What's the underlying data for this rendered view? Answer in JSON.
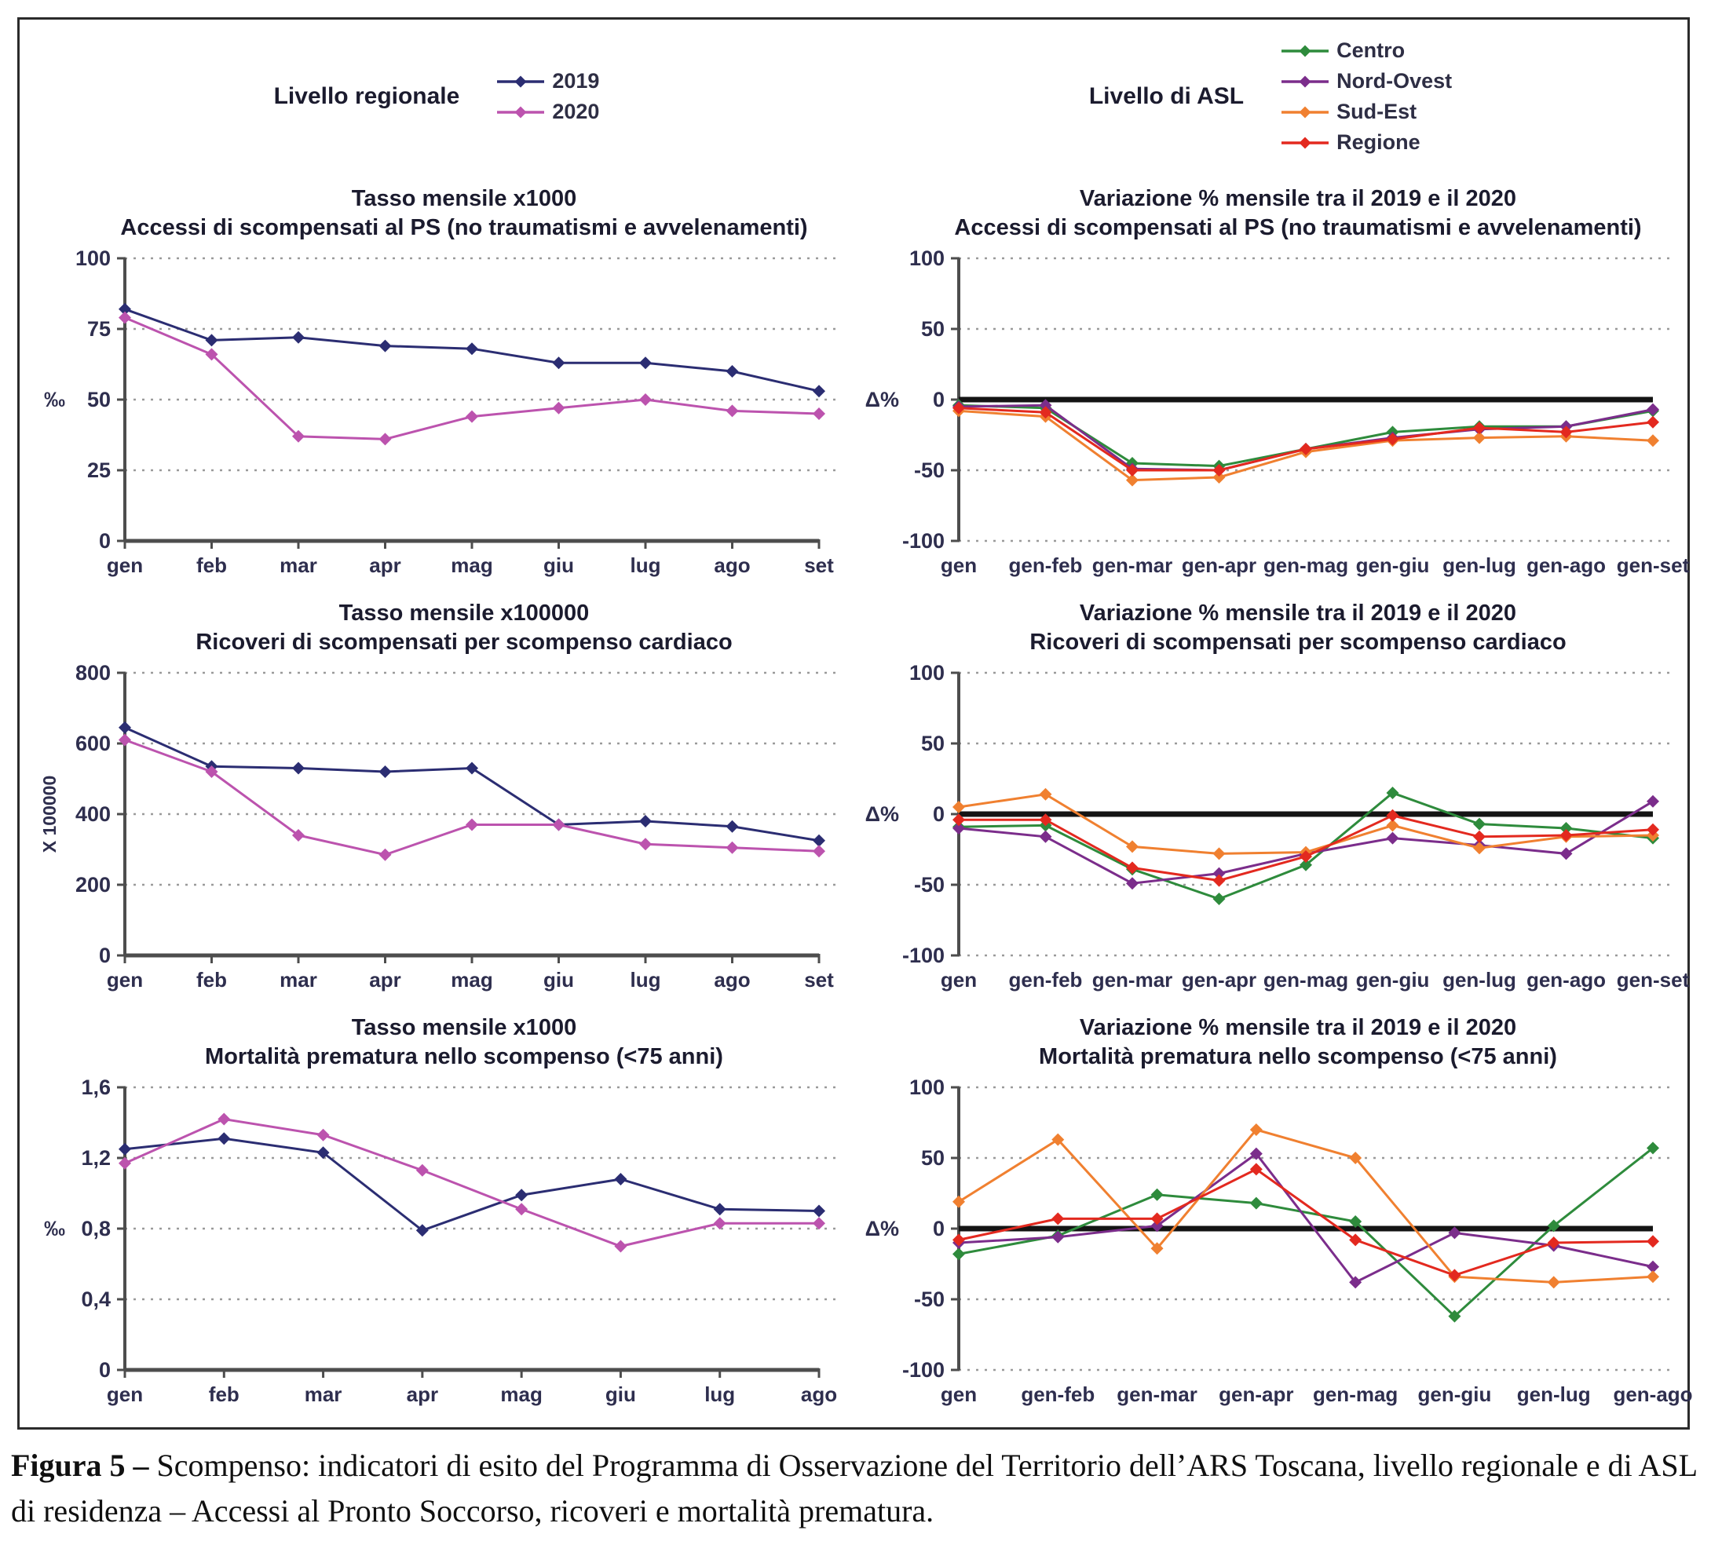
{
  "palette": {
    "c2019": "#2b2d72",
    "c2020": "#bc53ae",
    "centro": "#2e8b3c",
    "nordovest": "#7b2d8b",
    "sudest": "#f08030",
    "regione": "#e3291f",
    "grid": "#9a9a9a",
    "axis": "#4d4d4d",
    "zero": "#141414",
    "tick_text": "#2e2e4e"
  },
  "legend_left": {
    "title": "Livello regionale",
    "items": [
      {
        "label": "2019",
        "color": "c2019"
      },
      {
        "label": "2020",
        "color": "c2020"
      }
    ]
  },
  "legend_right": {
    "title": "Livello di ASL",
    "items": [
      {
        "label": "Centro",
        "color": "centro"
      },
      {
        "label": "Nord-Ovest",
        "color": "nordovest"
      },
      {
        "label": "Sud-Est",
        "color": "sudest"
      },
      {
        "label": "Regione",
        "color": "regione"
      }
    ]
  },
  "chart_data": [
    {
      "type": "line",
      "title1": "Tasso mensile x1000",
      "title2": "Accessi di scompensati al PS (no traumatismi e avvelenamenti)",
      "ylabel": "‰",
      "ylabel_rotate": false,
      "ymin": 0,
      "ymax": 100,
      "yticks": [
        {
          "v": 0,
          "l": "0"
        },
        {
          "v": 25,
          "l": "25"
        },
        {
          "v": 50,
          "l": "50"
        },
        {
          "v": 75,
          "l": "75"
        },
        {
          "v": 100,
          "l": "100"
        }
      ],
      "zero_axis": true,
      "zero_thick": false,
      "grid": true,
      "legend_position": "top-left-of-figure",
      "categories": [
        "gen",
        "feb",
        "mar",
        "apr",
        "mag",
        "giu",
        "lug",
        "ago",
        "set"
      ],
      "series": [
        {
          "name": "2019",
          "color": "c2019",
          "values": [
            82,
            71,
            72,
            69,
            68,
            63,
            63,
            60,
            53
          ]
        },
        {
          "name": "2020",
          "color": "c2020",
          "values": [
            79,
            66,
            37,
            36,
            44,
            47,
            50,
            46,
            45
          ]
        }
      ]
    },
    {
      "type": "line",
      "title1": "Variazione % mensile tra il 2019 e il 2020",
      "title2": "Accessi di scompensati al PS (no traumatismi e avvelenamenti)",
      "ylabel": "Δ%",
      "ylabel_rotate": false,
      "ymin": -100,
      "ymax": 100,
      "yticks": [
        {
          "v": -100,
          "l": "-100"
        },
        {
          "v": -50,
          "l": "-50"
        },
        {
          "v": 0,
          "l": "0"
        },
        {
          "v": 50,
          "l": "50"
        },
        {
          "v": 100,
          "l": "100"
        }
      ],
      "zero_axis": false,
      "zero_thick": true,
      "grid": true,
      "legend_position": "top-right-of-figure",
      "categories": [
        "gen",
        "gen-feb",
        "gen-mar",
        "gen-apr",
        "gen-mag",
        "gen-giu",
        "gen-lug",
        "gen-ago",
        "gen-set"
      ],
      "series": [
        {
          "name": "Centro",
          "color": "centro",
          "values": [
            -4,
            -6,
            -45,
            -47,
            -35,
            -23,
            -19,
            -19,
            -8
          ]
        },
        {
          "name": "Nord-Ovest",
          "color": "nordovest",
          "values": [
            -5,
            -4,
            -49,
            -50,
            -35,
            -27,
            -21,
            -19,
            -7
          ]
        },
        {
          "name": "Sud-Est",
          "color": "sudest",
          "values": [
            -8,
            -12,
            -57,
            -55,
            -37,
            -29,
            -27,
            -26,
            -29
          ]
        },
        {
          "name": "Regione",
          "color": "regione",
          "values": [
            -6,
            -9,
            -50,
            -50,
            -35,
            -28,
            -20,
            -23,
            -16
          ]
        }
      ]
    },
    {
      "type": "line",
      "title1": "Tasso mensile x100000",
      "title2": "Ricoveri di scompensati per scompenso cardiaco",
      "ylabel": "X 100000",
      "ylabel_rotate": true,
      "ymin": 0,
      "ymax": 800,
      "yticks": [
        {
          "v": 0,
          "l": "0"
        },
        {
          "v": 200,
          "l": "200"
        },
        {
          "v": 400,
          "l": "400"
        },
        {
          "v": 600,
          "l": "600"
        },
        {
          "v": 800,
          "l": "800"
        }
      ],
      "zero_axis": true,
      "zero_thick": false,
      "grid": true,
      "categories": [
        "gen",
        "feb",
        "mar",
        "apr",
        "mag",
        "giu",
        "lug",
        "ago",
        "set"
      ],
      "series": [
        {
          "name": "2019",
          "color": "c2019",
          "values": [
            645,
            535,
            530,
            520,
            530,
            370,
            380,
            365,
            325
          ]
        },
        {
          "name": "2020",
          "color": "c2020",
          "values": [
            610,
            520,
            340,
            285,
            370,
            370,
            315,
            305,
            295
          ]
        }
      ]
    },
    {
      "type": "line",
      "title1": "Variazione % mensile tra il 2019 e il 2020",
      "title2": "Ricoveri di scompensati per scompenso cardiaco",
      "ylabel": "Δ%",
      "ylabel_rotate": false,
      "ymin": -100,
      "ymax": 100,
      "yticks": [
        {
          "v": -100,
          "l": "-100"
        },
        {
          "v": -50,
          "l": "-50"
        },
        {
          "v": 0,
          "l": "0"
        },
        {
          "v": 50,
          "l": "50"
        },
        {
          "v": 100,
          "l": "100"
        }
      ],
      "zero_axis": false,
      "zero_thick": true,
      "grid": true,
      "categories": [
        "gen",
        "gen-feb",
        "gen-mar",
        "gen-apr",
        "gen-mag",
        "gen-giu",
        "gen-lug",
        "gen-ago",
        "gen-set"
      ],
      "series": [
        {
          "name": "Centro",
          "color": "centro",
          "values": [
            -9,
            -8,
            -39,
            -60,
            -36,
            15,
            -7,
            -10,
            -17
          ]
        },
        {
          "name": "Nord-Ovest",
          "color": "nordovest",
          "values": [
            -10,
            -16,
            -49,
            -42,
            -28,
            -17,
            -22,
            -28,
            9
          ]
        },
        {
          "name": "Sud-Est",
          "color": "sudest",
          "values": [
            5,
            14,
            -23,
            -28,
            -27,
            -8,
            -24,
            -16,
            -15
          ]
        },
        {
          "name": "Regione",
          "color": "regione",
          "values": [
            -4,
            -4,
            -38,
            -47,
            -30,
            -1,
            -16,
            -15,
            -11
          ]
        }
      ]
    },
    {
      "type": "line",
      "title1": "Tasso mensile x1000",
      "title2": "Mortalità prematura nello scompenso (<75 anni)",
      "ylabel": "‰",
      "ylabel_rotate": false,
      "ymin": 0,
      "ymax": 1.6,
      "yticks": [
        {
          "v": 0,
          "l": "0"
        },
        {
          "v": 0.4,
          "l": "0,4"
        },
        {
          "v": 0.8,
          "l": "0,8"
        },
        {
          "v": 1.2,
          "l": "1,2"
        },
        {
          "v": 1.6,
          "l": "1,6"
        }
      ],
      "zero_axis": true,
      "zero_thick": false,
      "grid": true,
      "categories": [
        "gen",
        "feb",
        "mar",
        "apr",
        "mag",
        "giu",
        "lug",
        "ago"
      ],
      "series": [
        {
          "name": "2019",
          "color": "c2019",
          "values": [
            1.25,
            1.31,
            1.23,
            0.79,
            0.99,
            1.08,
            0.91,
            0.9
          ]
        },
        {
          "name": "2020",
          "color": "c2020",
          "values": [
            1.17,
            1.42,
            1.33,
            1.13,
            0.91,
            0.7,
            0.83,
            0.83
          ]
        }
      ]
    },
    {
      "type": "line",
      "title1": "Variazione % mensile tra il 2019 e il 2020",
      "title2": "Mortalità prematura nello scompenso (<75 anni)",
      "ylabel": "Δ%",
      "ylabel_rotate": false,
      "ymin": -100,
      "ymax": 100,
      "yticks": [
        {
          "v": -100,
          "l": "-100"
        },
        {
          "v": -50,
          "l": "-50"
        },
        {
          "v": 0,
          "l": "0"
        },
        {
          "v": 50,
          "l": "50"
        },
        {
          "v": 100,
          "l": "100"
        }
      ],
      "zero_axis": false,
      "zero_thick": true,
      "grid": true,
      "categories": [
        "gen",
        "gen-feb",
        "gen-mar",
        "gen-apr",
        "gen-mag",
        "gen-giu",
        "gen-lug",
        "gen-ago"
      ],
      "series": [
        {
          "name": "Centro",
          "color": "centro",
          "values": [
            -18,
            -5,
            24,
            18,
            5,
            -62,
            2,
            57
          ]
        },
        {
          "name": "Nord-Ovest",
          "color": "nordovest",
          "values": [
            -10,
            -6,
            2,
            53,
            -38,
            -3,
            -12,
            -27
          ]
        },
        {
          "name": "Sud-Est",
          "color": "sudest",
          "values": [
            19,
            63,
            -14,
            70,
            50,
            -34,
            -38,
            -34
          ]
        },
        {
          "name": "Regione",
          "color": "regione",
          "values": [
            -8,
            7,
            7,
            42,
            -8,
            -33,
            -10,
            -9
          ]
        }
      ]
    }
  ],
  "caption": {
    "bold": "Figura 5 – ",
    "text": "Scompenso: indicatori di esito del Programma di Osservazione del Territorio dell’ARS Toscana, livello regionale e di ASL di residenza – Accessi al Pronto Soccorso, ricoveri e mortalità prematura."
  }
}
